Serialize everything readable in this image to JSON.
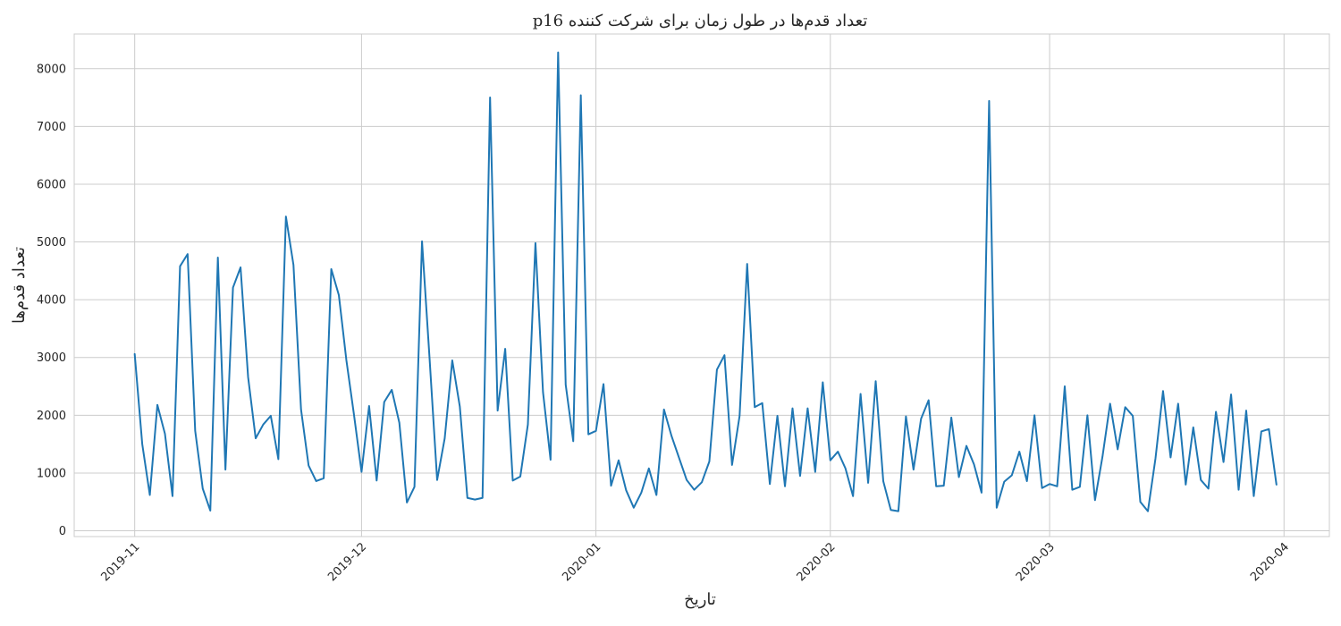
{
  "colors": {
    "line": "#1f77b4",
    "grid": "#cccccc",
    "text": "#262626"
  },
  "chart_data": {
    "type": "line",
    "title": "تعداد قدم‌ها در طول زمان برای شرکت کننده p16",
    "xlabel": "تاریخ",
    "ylabel": "تعداد قدم‌ها",
    "grid": true,
    "xlim": [
      "2019-10-24",
      "2020-04-07"
    ],
    "ylim": [
      -100,
      8600
    ],
    "x_ticks": [
      "2019-11",
      "2019-12",
      "2020-01",
      "2020-02",
      "2020-03",
      "2020-04"
    ],
    "x_tick_dates": [
      "2019-11-01",
      "2019-12-01",
      "2020-01-01",
      "2020-02-01",
      "2020-03-01",
      "2020-04-01"
    ],
    "y_ticks": [
      0,
      1000,
      2000,
      3000,
      4000,
      5000,
      6000,
      7000,
      8000
    ],
    "series": [
      {
        "start_date": "2019-11-01",
        "step_days": 1,
        "values": [
          3060,
          1500,
          620,
          2180,
          1680,
          600,
          4580,
          4790,
          1730,
          730,
          350,
          4730,
          1060,
          4210,
          4560,
          2660,
          1600,
          1840,
          1990,
          1240,
          5440,
          4600,
          2100,
          1130,
          860,
          910,
          4530,
          4080,
          2950,
          2010,
          1020,
          2160,
          870,
          2230,
          2440,
          1870,
          490,
          760,
          5010,
          2980,
          880,
          1600,
          2950,
          2150,
          570,
          540,
          570,
          7500,
          2080,
          3150,
          870,
          940,
          1840,
          4980,
          2400,
          1230,
          8280,
          2530,
          1550,
          7540,
          1670,
          1730,
          2540,
          780,
          1220,
          700,
          400,
          660,
          1080,
          620,
          2100,
          1640,
          1260,
          880,
          710,
          840,
          1200,
          2790,
          3040,
          1140,
          1990,
          4620,
          2140,
          2210,
          810,
          1990,
          770,
          2120,
          950,
          2120,
          1020,
          2570,
          1220,
          1370,
          1080,
          600,
          2370,
          830,
          2590,
          860,
          360,
          340,
          1980,
          1060,
          1940,
          2260,
          770,
          780,
          1960,
          930,
          1470,
          1150,
          660,
          7440,
          400,
          850,
          960,
          1370,
          860,
          2000,
          740,
          810,
          770,
          2500,
          710,
          760,
          2000,
          530,
          1290,
          2200,
          1410,
          2140,
          1990,
          500,
          340,
          1250,
          2420,
          1270,
          2200,
          800,
          1790,
          880,
          730,
          2060,
          1190,
          2360,
          710,
          2080,
          600,
          1720,
          1760,
          800
        ]
      }
    ]
  }
}
